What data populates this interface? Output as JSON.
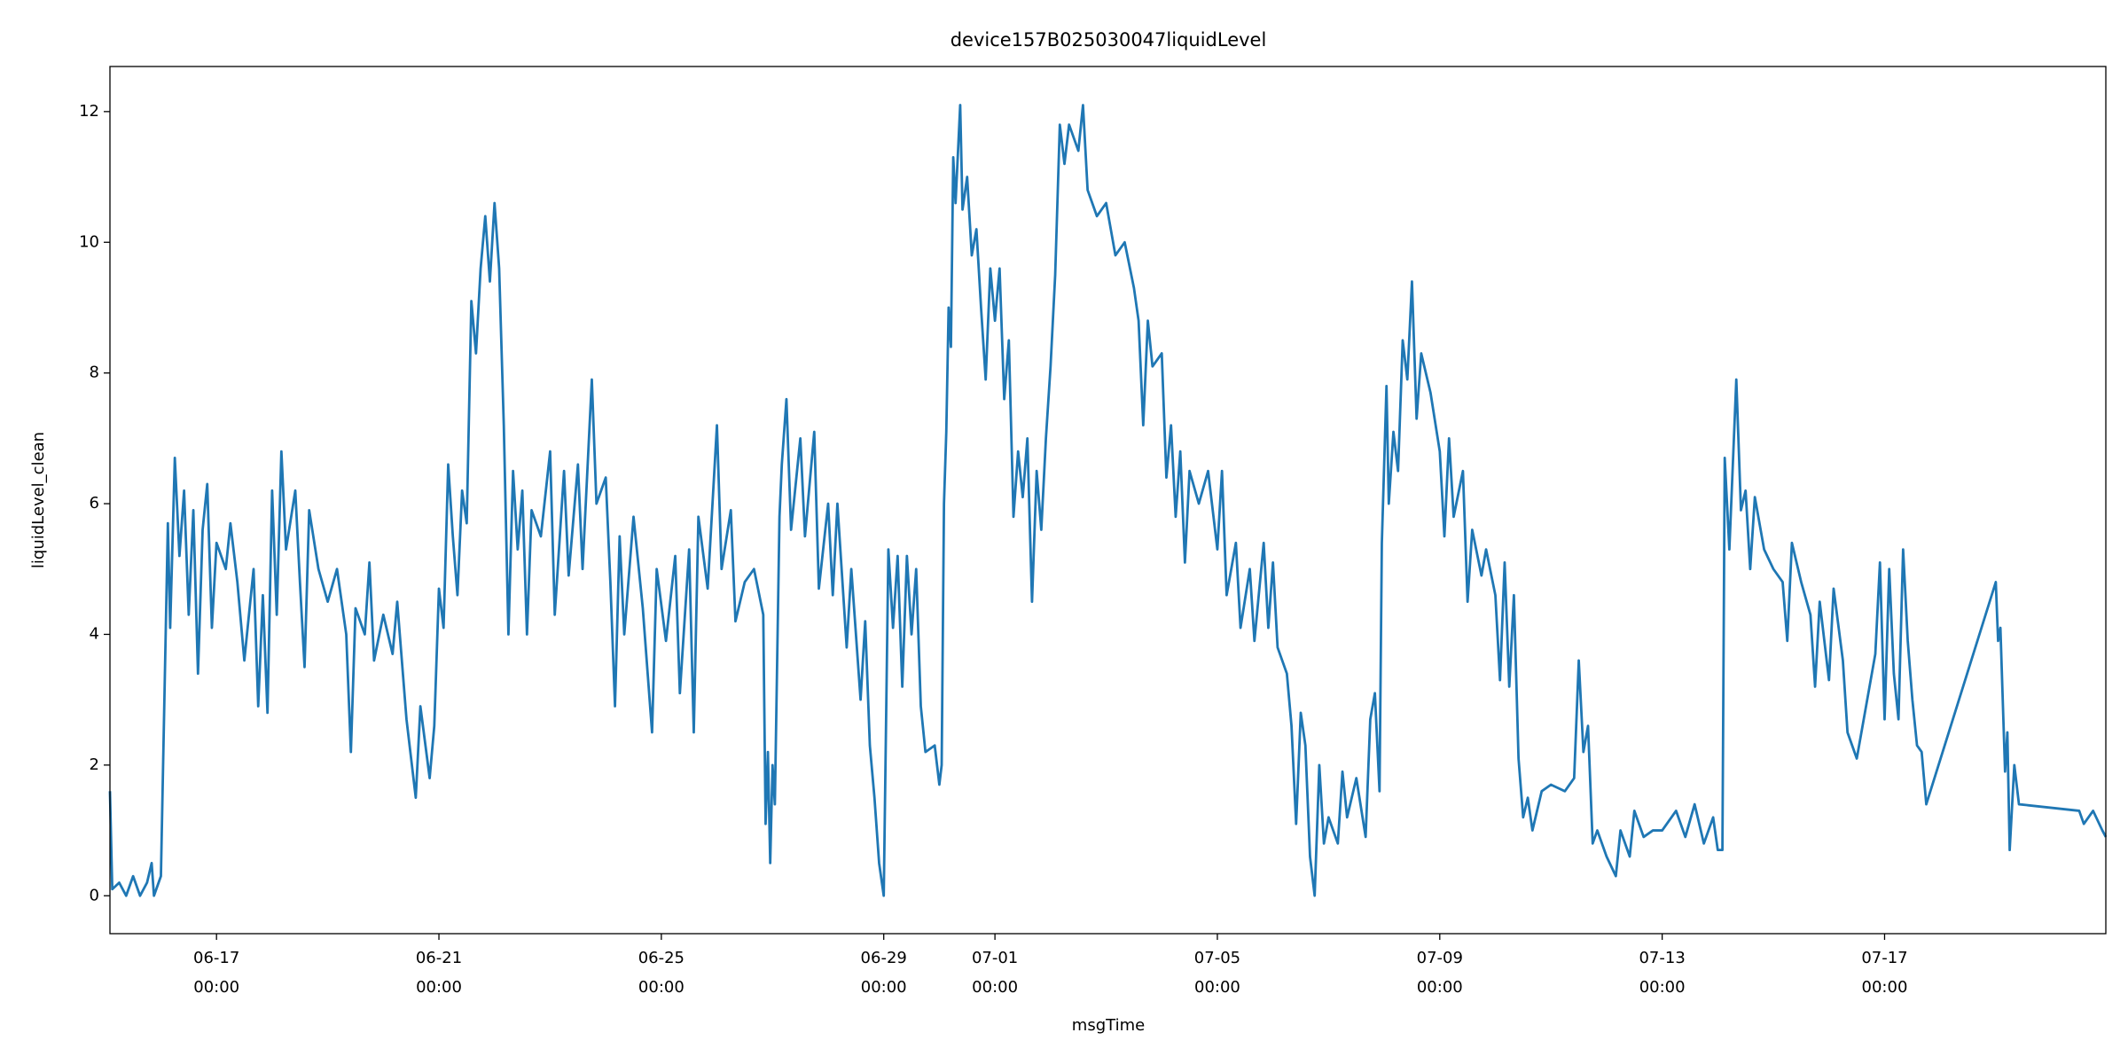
{
  "chart_data": {
    "type": "line",
    "title": "device157B025030047liquidLevel",
    "x_label": "msgTime",
    "y_label": "liquidLevel_clean",
    "color": "#1f77b4",
    "grid": false,
    "xlim": [
      "06-15 02:00",
      "07-20 23:30"
    ],
    "xticks": [
      "06-17 00:00",
      "06-21 00:00",
      "06-25 00:00",
      "06-29 00:00",
      "07-01 00:00",
      "07-05 00:00",
      "07-09 00:00",
      "07-13 00:00",
      "07-17 00:00"
    ],
    "ylim": [
      -0.58,
      12.69
    ],
    "yticks": [
      0,
      2,
      4,
      6,
      8,
      10,
      12
    ],
    "x": [
      "06-15 02:00",
      "06-15 03:00",
      "06-15 06:00",
      "06-15 09:00",
      "06-15 12:00",
      "06-15 15:00",
      "06-15 18:00",
      "06-15 20:00",
      "06-15 21:00",
      "06-16 00:00",
      "06-16 03:00",
      "06-16 04:00",
      "06-16 06:00",
      "06-16 08:00",
      "06-16 10:00",
      "06-16 12:00",
      "06-16 14:00",
      "06-16 16:00",
      "06-16 18:00",
      "06-16 20:00",
      "06-16 22:00",
      "06-17 00:00",
      "06-17 04:00",
      "06-17 06:00",
      "06-17 09:00",
      "06-17 12:00",
      "06-17 16:00",
      "06-17 18:00",
      "06-17 20:00",
      "06-17 22:00",
      "06-18 00:00",
      "06-18 02:00",
      "06-18 04:00",
      "06-18 06:00",
      "06-18 10:00",
      "06-18 12:00",
      "06-18 14:00",
      "06-18 16:00",
      "06-18 20:00",
      "06-19 00:00",
      "06-19 04:00",
      "06-19 08:00",
      "06-19 10:00",
      "06-19 12:00",
      "06-19 16:00",
      "06-19 18:00",
      "06-19 20:00",
      "06-20 00:00",
      "06-20 04:00",
      "06-20 06:00",
      "06-20 10:00",
      "06-20 14:00",
      "06-20 16:00",
      "06-20 20:00",
      "06-20 22:00",
      "06-21 00:00",
      "06-21 02:00",
      "06-21 04:00",
      "06-21 06:00",
      "06-21 08:00",
      "06-21 10:00",
      "06-21 12:00",
      "06-21 14:00",
      "06-21 16:00",
      "06-21 18:00",
      "06-21 20:00",
      "06-21 22:00",
      "06-22 00:00",
      "06-22 02:00",
      "06-22 04:00",
      "06-22 06:00",
      "06-22 08:00",
      "06-22 10:00",
      "06-22 12:00",
      "06-22 14:00",
      "06-22 16:00",
      "06-22 20:00",
      "06-23 00:00",
      "06-23 02:00",
      "06-23 06:00",
      "06-23 08:00",
      "06-23 12:00",
      "06-23 14:00",
      "06-23 18:00",
      "06-23 20:00",
      "06-24 00:00",
      "06-24 02:00",
      "06-24 04:00",
      "06-24 06:00",
      "06-24 08:00",
      "06-24 12:00",
      "06-24 16:00",
      "06-24 20:00",
      "06-24 22:00",
      "06-25 02:00",
      "06-25 06:00",
      "06-25 08:00",
      "06-25 12:00",
      "06-25 14:00",
      "06-25 16:00",
      "06-25 20:00",
      "06-26 00:00",
      "06-26 02:00",
      "06-26 06:00",
      "06-26 08:00",
      "06-26 12:00",
      "06-26 16:00",
      "06-26 20:00",
      "06-26 21:00",
      "06-26 22:00",
      "06-26 23:00",
      "06-27 00:00",
      "06-27 01:00",
      "06-27 03:00",
      "06-27 04:00",
      "06-27 06:00",
      "06-27 08:00",
      "06-27 12:00",
      "06-27 14:00",
      "06-27 18:00",
      "06-27 20:00",
      "06-28 00:00",
      "06-28 02:00",
      "06-28 04:00",
      "06-28 08:00",
      "06-28 10:00",
      "06-28 14:00",
      "06-28 16:00",
      "06-28 18:00",
      "06-28 20:00",
      "06-28 22:00",
      "06-29 00:00",
      "06-29 02:00",
      "06-29 04:00",
      "06-29 06:00",
      "06-29 08:00",
      "06-29 10:00",
      "06-29 12:00",
      "06-29 14:00",
      "06-29 16:00",
      "06-29 18:00",
      "06-29 22:00",
      "06-30 00:00",
      "06-30 01:00",
      "06-30 02:00",
      "06-30 03:00",
      "06-30 04:00",
      "06-30 05:00",
      "06-30 06:00",
      "06-30 07:00",
      "06-30 09:00",
      "06-30 10:00",
      "06-30 12:00",
      "06-30 14:00",
      "06-30 16:00",
      "06-30 18:00",
      "06-30 20:00",
      "06-30 22:00",
      "07-01 00:00",
      "07-01 02:00",
      "07-01 04:00",
      "07-01 06:00",
      "07-01 08:00",
      "07-01 10:00",
      "07-01 12:00",
      "07-01 14:00",
      "07-01 16:00",
      "07-01 18:00",
      "07-01 20:00",
      "07-01 22:00",
      "07-02 00:00",
      "07-02 02:00",
      "07-02 04:00",
      "07-02 06:00",
      "07-02 08:00",
      "07-02 12:00",
      "07-02 14:00",
      "07-02 16:00",
      "07-02 20:00",
      "07-03 00:00",
      "07-03 04:00",
      "07-03 08:00",
      "07-03 12:00",
      "07-03 14:00",
      "07-03 16:00",
      "07-03 18:00",
      "07-03 20:00",
      "07-04 00:00",
      "07-04 02:00",
      "07-04 04:00",
      "07-04 06:00",
      "07-04 08:00",
      "07-04 10:00",
      "07-04 12:00",
      "07-04 16:00",
      "07-04 20:00",
      "07-05 00:00",
      "07-05 02:00",
      "07-05 04:00",
      "07-05 08:00",
      "07-05 10:00",
      "07-05 14:00",
      "07-05 16:00",
      "07-05 20:00",
      "07-05 22:00",
      "07-06 00:00",
      "07-06 02:00",
      "07-06 06:00",
      "07-06 08:00",
      "07-06 10:00",
      "07-06 12:00",
      "07-06 14:00",
      "07-06 16:00",
      "07-06 18:00",
      "07-06 20:00",
      "07-06 22:00",
      "07-07 00:00",
      "07-07 04:00",
      "07-07 06:00",
      "07-07 08:00",
      "07-07 12:00",
      "07-07 16:00",
      "07-07 18:00",
      "07-07 20:00",
      "07-07 22:00",
      "07-07 23:00",
      "07-08 01:00",
      "07-08 02:00",
      "07-08 04:00",
      "07-08 06:00",
      "07-08 08:00",
      "07-08 10:00",
      "07-08 12:00",
      "07-08 14:00",
      "07-08 16:00",
      "07-08 20:00",
      "07-09 00:00",
      "07-09 02:00",
      "07-09 04:00",
      "07-09 06:00",
      "07-09 10:00",
      "07-09 12:00",
      "07-09 14:00",
      "07-09 18:00",
      "07-09 20:00",
      "07-10 00:00",
      "07-10 02:00",
      "07-10 04:00",
      "07-10 06:00",
      "07-10 08:00",
      "07-10 10:00",
      "07-10 12:00",
      "07-10 14:00",
      "07-10 16:00",
      "07-10 20:00",
      "07-11 00:00",
      "07-11 06:00",
      "07-11 10:00",
      "07-11 12:00",
      "07-11 14:00",
      "07-11 16:00",
      "07-11 18:00",
      "07-11 20:00",
      "07-12 00:00",
      "07-12 04:00",
      "07-12 06:00",
      "07-12 10:00",
      "07-12 12:00",
      "07-12 16:00",
      "07-12 20:00",
      "07-13 00:00",
      "07-13 06:00",
      "07-13 10:00",
      "07-13 14:00",
      "07-13 18:00",
      "07-13 22:00",
      "07-14 00:00",
      "07-14 02:00",
      "07-14 03:00",
      "07-14 05:00",
      "07-14 08:00",
      "07-14 10:00",
      "07-14 12:00",
      "07-14 14:00",
      "07-14 16:00",
      "07-14 20:00",
      "07-15 00:00",
      "07-15 04:00",
      "07-15 06:00",
      "07-15 08:00",
      "07-15 12:00",
      "07-15 16:00",
      "07-15 18:00",
      "07-15 20:00",
      "07-16 00:00",
      "07-16 02:00",
      "07-16 06:00",
      "07-16 08:00",
      "07-16 12:00",
      "07-16 20:00",
      "07-16 22:00",
      "07-17 00:00",
      "07-17 02:00",
      "07-17 04:00",
      "07-17 06:00",
      "07-17 08:00",
      "07-17 10:00",
      "07-17 12:00",
      "07-17 14:00",
      "07-17 16:00",
      "07-17 18:00",
      "07-19 00:00",
      "07-19 01:00",
      "07-19 02:00",
      "07-19 04:00",
      "07-19 05:00",
      "07-19 06:00",
      "07-19 08:00",
      "07-19 10:00",
      "07-20 12:00",
      "07-20 14:00",
      "07-20 18:00",
      "07-20 22:00",
      "07-20 23:30"
    ],
    "values": [
      1.6,
      0.1,
      0.2,
      0.0,
      0.3,
      0.0,
      0.2,
      0.5,
      0.0,
      0.3,
      5.7,
      4.1,
      6.7,
      5.2,
      6.2,
      4.3,
      5.9,
      3.4,
      5.6,
      6.3,
      4.1,
      5.4,
      5.0,
      5.7,
      4.8,
      3.6,
      5.0,
      2.9,
      4.6,
      2.8,
      6.2,
      4.3,
      6.8,
      5.3,
      6.2,
      4.8,
      3.5,
      5.9,
      5.0,
      4.5,
      5.0,
      4.0,
      2.2,
      4.4,
      4.0,
      5.1,
      3.6,
      4.3,
      3.7,
      4.5,
      2.7,
      1.5,
      2.9,
      1.8,
      2.6,
      4.7,
      4.1,
      6.6,
      5.5,
      4.6,
      6.2,
      5.7,
      9.1,
      8.3,
      9.6,
      10.4,
      9.4,
      10.6,
      9.6,
      7.2,
      4.0,
      6.5,
      5.3,
      6.2,
      4.0,
      5.9,
      5.5,
      6.8,
      4.3,
      6.5,
      4.9,
      6.6,
      5.0,
      7.9,
      6.0,
      6.4,
      4.8,
      2.9,
      5.5,
      4.0,
      5.8,
      4.4,
      2.5,
      5.0,
      3.9,
      5.2,
      3.1,
      5.3,
      2.5,
      5.8,
      4.7,
      7.2,
      5.0,
      5.9,
      4.2,
      4.8,
      5.0,
      4.3,
      1.1,
      2.2,
      0.5,
      2.0,
      1.4,
      5.8,
      6.6,
      7.6,
      5.6,
      7.0,
      5.5,
      7.1,
      4.7,
      6.0,
      4.6,
      6.0,
      3.8,
      5.0,
      3.0,
      4.2,
      2.3,
      1.5,
      0.5,
      0.0,
      5.3,
      4.1,
      5.2,
      3.2,
      5.2,
      4.0,
      5.0,
      2.9,
      2.2,
      2.3,
      1.7,
      2.0,
      6.0,
      7.1,
      9.0,
      8.4,
      11.3,
      10.6,
      12.1,
      10.5,
      11.0,
      9.8,
      10.2,
      9.0,
      7.9,
      9.6,
      8.8,
      9.6,
      7.6,
      8.5,
      5.8,
      6.8,
      6.1,
      7.0,
      4.5,
      6.5,
      5.6,
      7.0,
      8.1,
      9.5,
      11.8,
      11.2,
      11.8,
      11.4,
      12.1,
      10.8,
      10.4,
      10.6,
      9.8,
      10.0,
      9.3,
      8.8,
      7.2,
      8.8,
      8.1,
      8.3,
      6.4,
      7.2,
      5.8,
      6.8,
      5.1,
      6.5,
      6.0,
      6.5,
      5.3,
      6.5,
      4.6,
      5.4,
      4.1,
      5.0,
      3.9,
      5.4,
      4.1,
      5.1,
      3.8,
      3.4,
      2.6,
      1.1,
      2.8,
      2.3,
      0.6,
      0.0,
      2.0,
      0.8,
      1.2,
      0.8,
      1.9,
      1.2,
      1.8,
      0.9,
      2.7,
      3.1,
      1.6,
      5.4,
      7.8,
      6.0,
      7.1,
      6.5,
      8.5,
      7.9,
      9.4,
      7.3,
      8.3,
      7.7,
      6.8,
      5.5,
      7.0,
      5.8,
      6.5,
      4.5,
      5.6,
      4.9,
      5.3,
      4.6,
      3.3,
      5.1,
      3.2,
      4.6,
      2.1,
      1.2,
      1.5,
      1.0,
      1.6,
      1.7,
      1.6,
      1.8,
      3.6,
      2.2,
      2.6,
      0.8,
      1.0,
      0.6,
      0.3,
      1.0,
      0.6,
      1.3,
      0.9,
      1.0,
      1.0,
      1.3,
      0.9,
      1.4,
      0.8,
      1.2,
      0.7,
      0.7,
      6.7,
      5.3,
      7.9,
      5.9,
      6.2,
      5.0,
      6.1,
      5.3,
      5.0,
      4.8,
      3.9,
      5.4,
      4.8,
      4.3,
      3.2,
      4.5,
      3.3,
      4.7,
      3.6,
      2.5,
      2.1,
      3.7,
      5.1,
      2.7,
      5.0,
      3.4,
      2.7,
      5.3,
      3.9,
      3.0,
      2.3,
      2.2,
      1.4,
      4.8,
      3.9,
      4.1,
      1.9,
      2.5,
      0.7,
      2.0,
      1.4,
      1.3,
      1.1,
      1.3,
      1.0,
      0.9
    ]
  }
}
